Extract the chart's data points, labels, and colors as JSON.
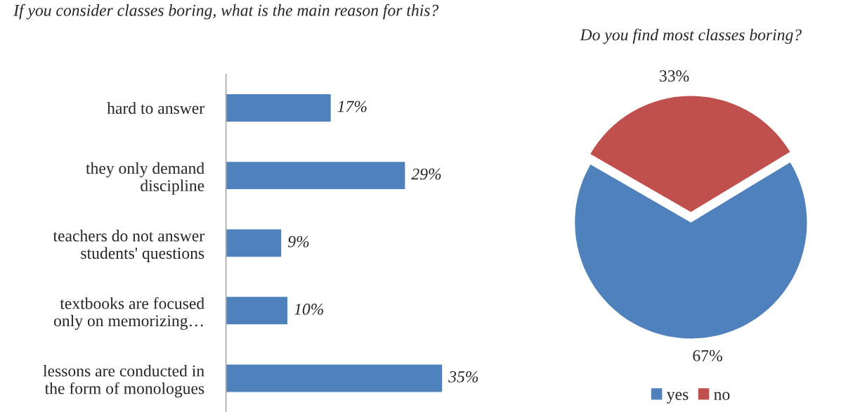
{
  "chart_data": [
    {
      "type": "bar",
      "orientation": "horizontal",
      "title": "If you consider classes boring, what is the main reason for this?",
      "categories": [
        "hard to answer",
        "they only demand\ndiscipline",
        "teachers do not answer\nstudents' questions",
        "textbooks are focused\nonly on memorizing…",
        "lessons are conducted in\nthe form of monologues"
      ],
      "values": [
        17,
        29,
        9,
        10,
        35
      ],
      "color": "#4f81bd",
      "value_labels": [
        "17%",
        "29%",
        "9%",
        "10%",
        "35%"
      ],
      "grid": false,
      "legend": false
    },
    {
      "type": "pie",
      "title": "Do you find most classes boring?",
      "categories": [
        "yes",
        "no"
      ],
      "values": [
        67,
        33
      ],
      "colors": [
        "#4f81bd",
        "#c0504d"
      ],
      "value_labels": [
        "67%",
        "33%"
      ],
      "legend": "bottom"
    }
  ]
}
